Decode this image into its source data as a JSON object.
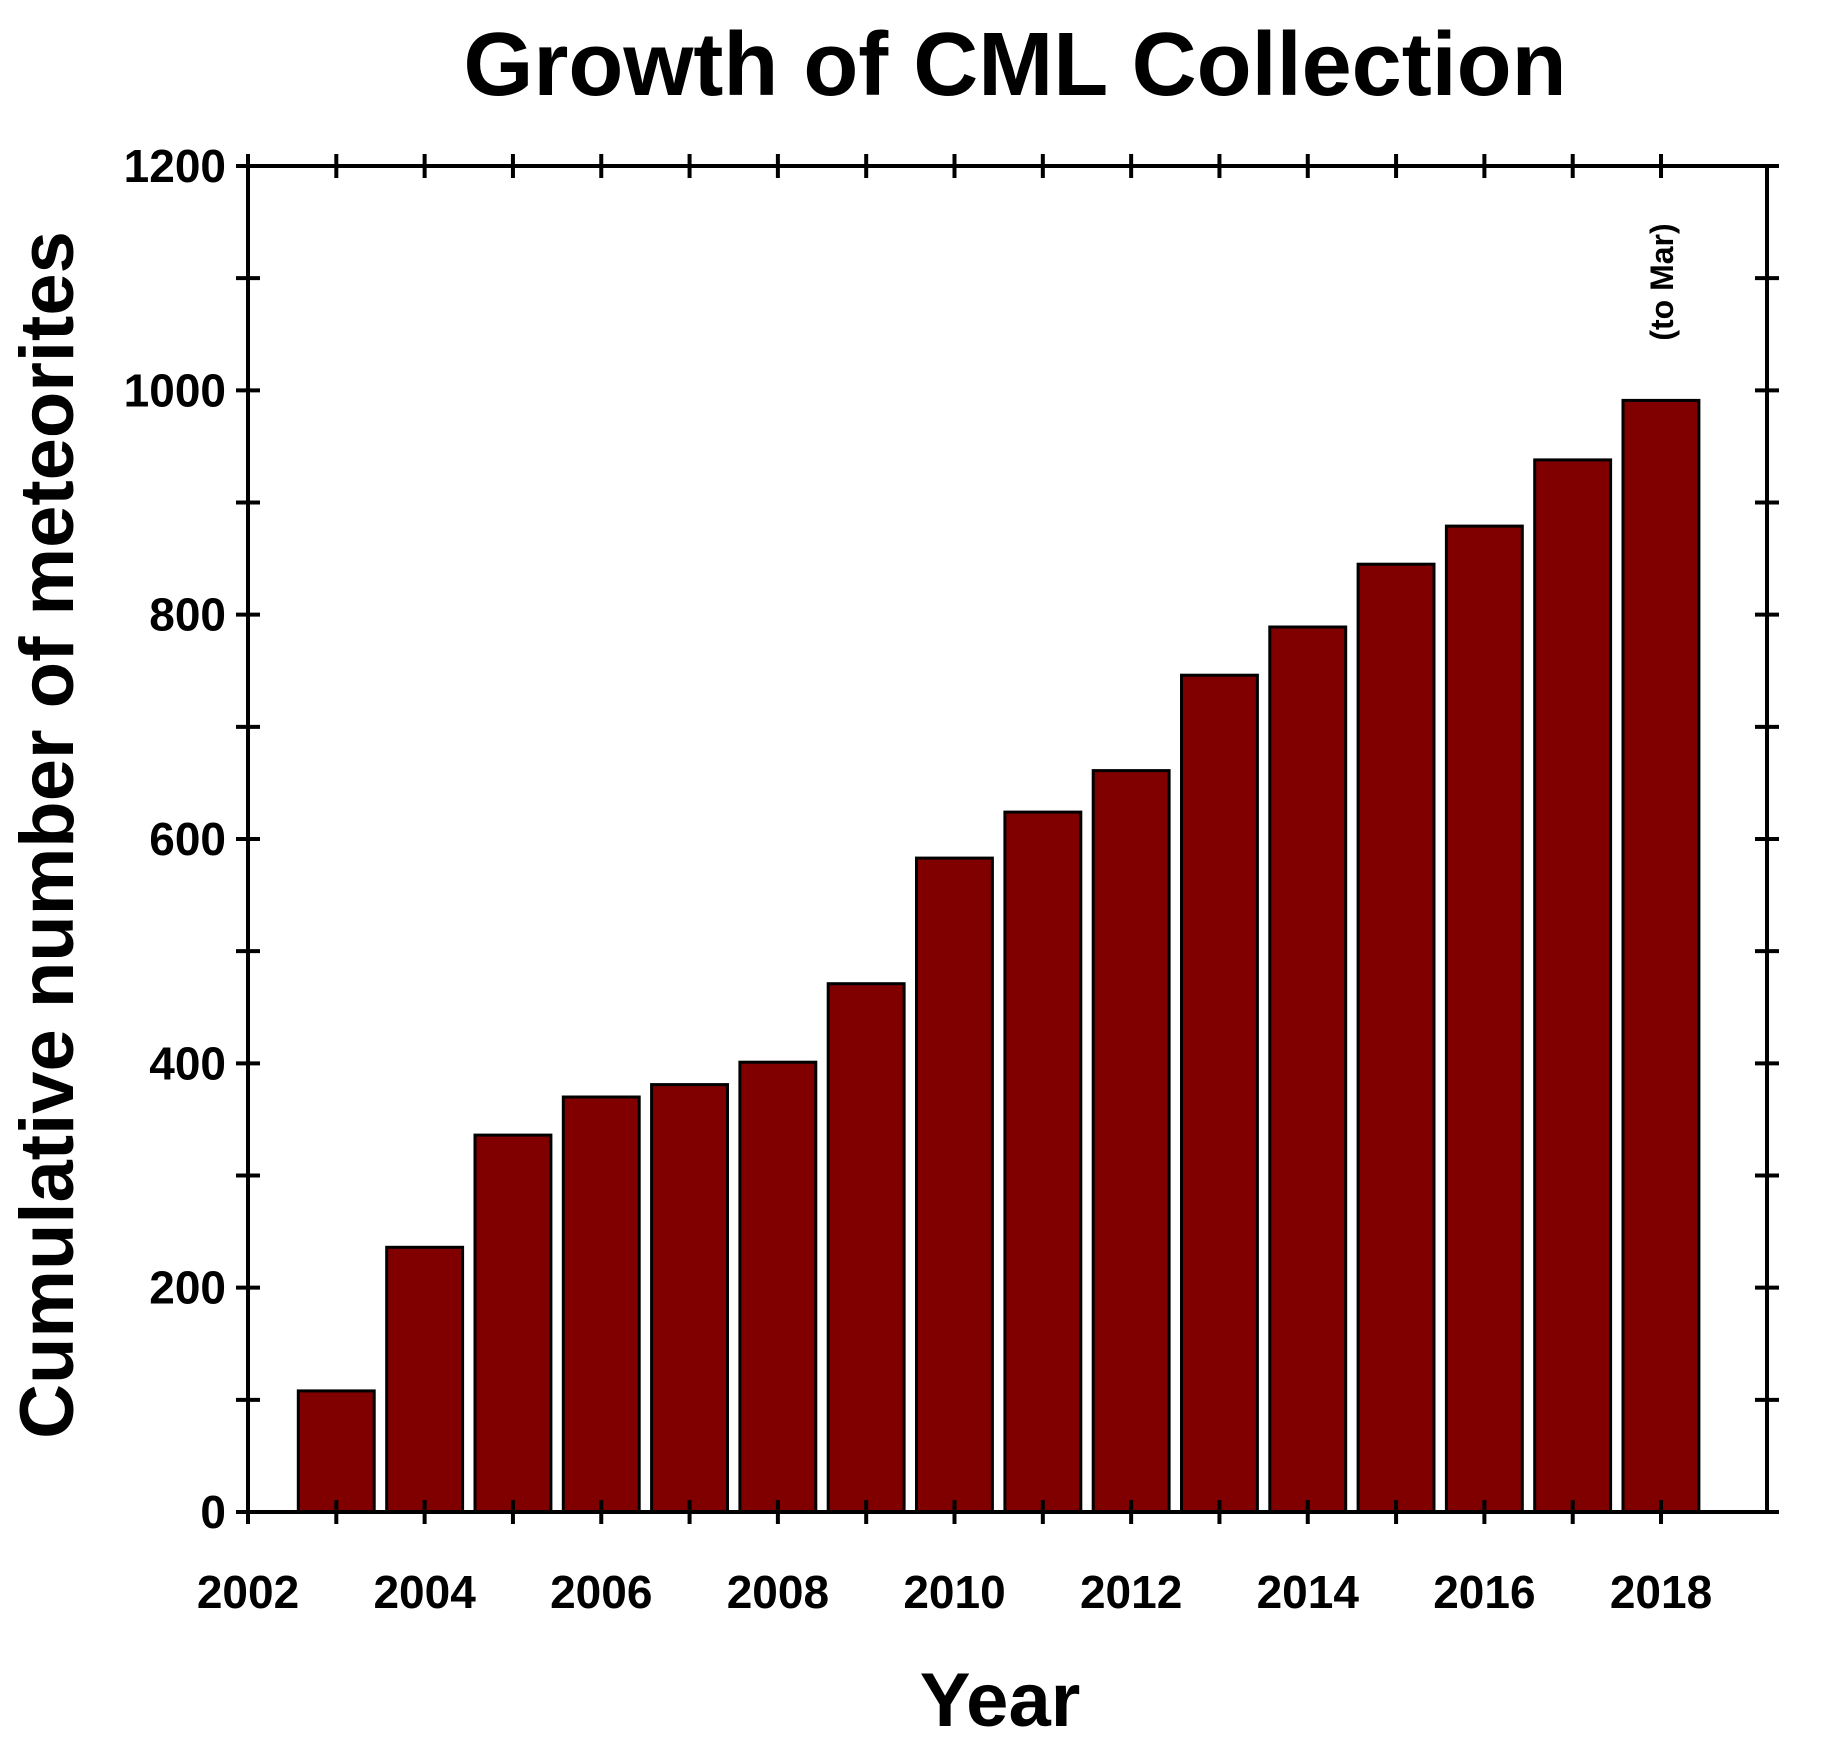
{
  "chart_data": {
    "type": "bar",
    "title": "Growth of CML Collection",
    "xlabel": "Year",
    "ylabel": "Cumulative number of meteorites",
    "x": [
      2003,
      2004,
      2005,
      2006,
      2007,
      2008,
      2009,
      2010,
      2011,
      2012,
      2013,
      2014,
      2015,
      2016,
      2017,
      2018
    ],
    "values": [
      108,
      236,
      336,
      370,
      381,
      401,
      471,
      583,
      624,
      661,
      746,
      789,
      845,
      879,
      938,
      991
    ],
    "xlim": [
      2002,
      2019.2
    ],
    "ylim": [
      0,
      1200
    ],
    "xticks": [
      2002,
      2004,
      2006,
      2008,
      2010,
      2012,
      2014,
      2016,
      2018
    ],
    "yticks": [
      0,
      200,
      400,
      600,
      800,
      1000,
      1200
    ],
    "bar_color": "#800000",
    "annotation": {
      "text": "(to Mar)",
      "x": 2018,
      "orientation": "vertical"
    },
    "grid": false,
    "legend": "none"
  }
}
